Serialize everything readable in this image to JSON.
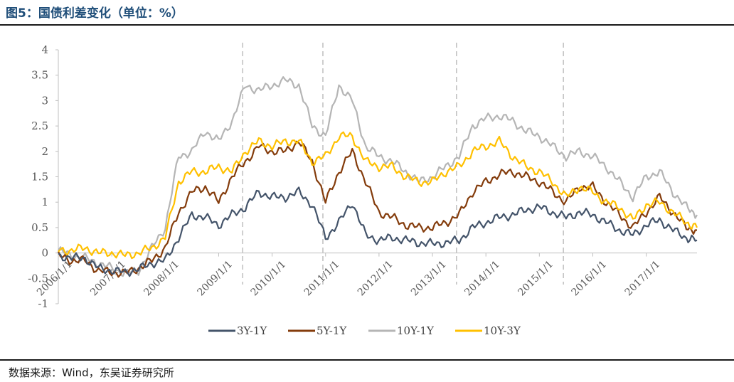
{
  "figure": {
    "title": "图5：国债利差变化（单位：%）",
    "source": "数据来源：Wind，东吴证券研究所"
  },
  "chart_data": {
    "type": "line",
    "title": "国债利差变化（单位：%）",
    "xlabel": "",
    "ylabel": "",
    "ylim": [
      -1,
      4
    ],
    "yticks": [
      "4",
      "3.5",
      "3",
      "2.5",
      "2",
      "1.5",
      "1",
      "0.5",
      "0",
      "-0.5",
      "-1"
    ],
    "x_tick_labels": [
      "2006/1/1",
      "2007/1/1",
      "2008/1/1",
      "2009/1/1",
      "2010/1/1",
      "2011/1/1",
      "2012/1/1",
      "2013/1/1",
      "2014/1/1",
      "2015/1/1",
      "2016/1/1",
      "2017/1/1"
    ],
    "x_range_years": [
      2006.0,
      2017.95
    ],
    "dashed_vertical_years": [
      2009.45,
      2010.95,
      2013.45,
      2015.45
    ],
    "legend_position": "bottom",
    "colors": {
      "3Y-1Y": "#44546a",
      "5Y-1Y": "#843c0c",
      "10Y-1Y": "#b5b5b5",
      "10Y-3Y": "#ffc000"
    },
    "x": [
      2006.0,
      2006.25,
      2006.5,
      2006.75,
      2007.0,
      2007.25,
      2007.5,
      2007.75,
      2008.0,
      2008.25,
      2008.5,
      2008.75,
      2009.0,
      2009.25,
      2009.5,
      2009.75,
      2010.0,
      2010.25,
      2010.5,
      2010.75,
      2011.0,
      2011.25,
      2011.5,
      2011.75,
      2012.0,
      2012.25,
      2012.5,
      2012.75,
      2013.0,
      2013.25,
      2013.5,
      2013.75,
      2014.0,
      2014.25,
      2014.5,
      2014.75,
      2015.0,
      2015.25,
      2015.5,
      2015.75,
      2016.0,
      2016.25,
      2016.5,
      2016.75,
      2017.0,
      2017.25,
      2017.5,
      2017.75,
      2017.95
    ],
    "series": [
      {
        "name": "3Y-1Y",
        "values": [
          -0.05,
          -0.1,
          -0.1,
          -0.3,
          -0.35,
          -0.38,
          -0.32,
          -0.2,
          -0.15,
          0.3,
          0.75,
          0.7,
          0.55,
          0.75,
          0.9,
          1.2,
          1.1,
          1.1,
          1.2,
          0.95,
          0.3,
          0.6,
          1.0,
          0.35,
          0.25,
          0.3,
          0.25,
          0.2,
          0.18,
          0.2,
          0.25,
          0.5,
          0.6,
          0.7,
          0.75,
          0.85,
          0.9,
          0.8,
          0.7,
          0.8,
          0.75,
          0.6,
          0.45,
          0.35,
          0.55,
          0.65,
          0.45,
          0.3,
          0.25
        ]
      },
      {
        "name": "5Y-1Y",
        "values": [
          -0.05,
          -0.15,
          -0.15,
          -0.35,
          -0.38,
          -0.4,
          -0.3,
          -0.15,
          0.1,
          0.8,
          1.2,
          1.3,
          1.0,
          1.5,
          1.8,
          2.1,
          2.0,
          2.0,
          2.2,
          1.8,
          1.0,
          1.6,
          2.0,
          1.4,
          0.8,
          0.7,
          0.55,
          0.5,
          0.5,
          0.6,
          0.75,
          1.2,
          1.4,
          1.55,
          1.6,
          1.5,
          1.4,
          1.2,
          1.0,
          1.3,
          1.3,
          1.0,
          0.75,
          0.5,
          0.8,
          1.1,
          0.8,
          0.5,
          0.45
        ]
      },
      {
        "name": "10Y-1Y",
        "values": [
          0.05,
          -0.05,
          -0.1,
          -0.2,
          -0.3,
          -0.4,
          -0.35,
          0.1,
          0.5,
          1.9,
          2.0,
          2.4,
          2.2,
          2.6,
          3.3,
          3.2,
          3.3,
          3.4,
          3.3,
          2.5,
          2.3,
          3.3,
          3.0,
          2.1,
          1.9,
          1.8,
          1.6,
          1.4,
          1.5,
          1.7,
          1.9,
          2.5,
          2.65,
          2.7,
          2.6,
          2.4,
          2.3,
          2.1,
          1.9,
          2.0,
          1.9,
          1.7,
          1.4,
          1.1,
          1.5,
          1.6,
          1.2,
          0.9,
          0.75
        ]
      },
      {
        "name": "10Y-3Y",
        "values": [
          0.05,
          0.05,
          0.1,
          0.0,
          0.0,
          -0.05,
          0.0,
          0.1,
          0.3,
          1.4,
          1.6,
          1.6,
          1.7,
          1.6,
          2.0,
          2.2,
          2.1,
          2.2,
          2.2,
          1.8,
          1.9,
          2.3,
          2.3,
          1.8,
          1.7,
          1.7,
          1.5,
          1.4,
          1.4,
          1.6,
          1.7,
          2.0,
          2.1,
          2.2,
          1.9,
          1.7,
          1.6,
          1.4,
          1.1,
          1.3,
          1.2,
          1.0,
          0.9,
          0.65,
          0.95,
          1.0,
          0.8,
          0.6,
          0.5
        ]
      }
    ]
  }
}
